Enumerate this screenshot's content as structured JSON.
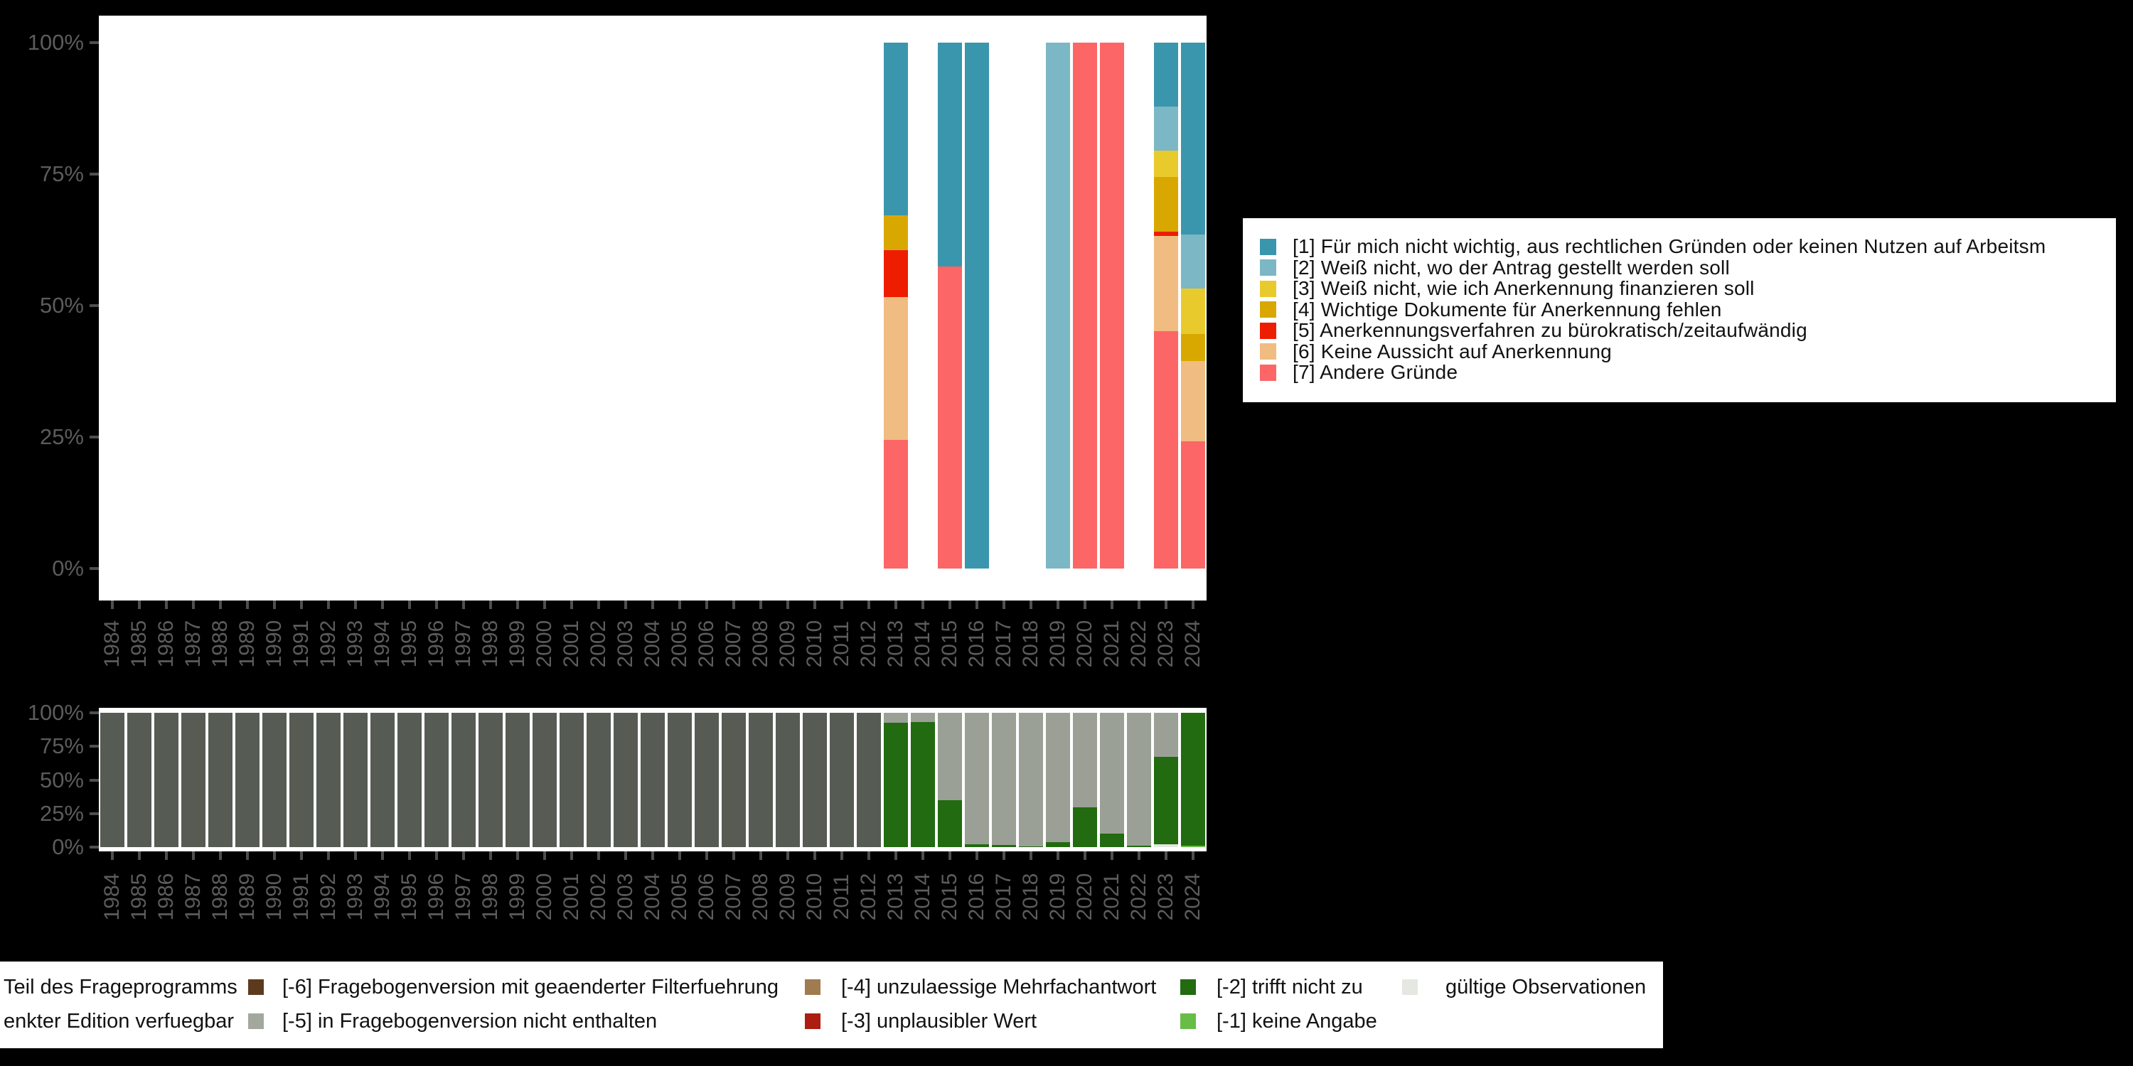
{
  "colors": {
    "background": "#000000",
    "plot_background": "#ffffff",
    "axis_text": "#5c5c5c",
    "tick": "#4f4f4f",
    "teal": "#3a96ad",
    "light_blue": "#7cb7c5",
    "yellow": "#e9ca2d",
    "gold": "#d8a800",
    "red": "#ee1d00",
    "tan": "#f0bc81",
    "salmon": "#fc6666",
    "dark_olive": "#565c54",
    "gray": "#9ba097",
    "dark_green": "#226b10",
    "light_green": "#68bd47",
    "valid_light_gray": "#e4e8e1",
    "dark_brown": "#5e3a1d",
    "light_brown": "#a07b50",
    "dark_red": "#ad1d12",
    "swatch_gray": "#a3a89f"
  },
  "chart_data": [
    {
      "type": "bar",
      "stacked": true,
      "title": "",
      "xlabel": "",
      "ylabel": "",
      "ylim": [
        0,
        100
      ],
      "grid": false,
      "ytick_labels": [
        "0%",
        "25%",
        "50%",
        "75%",
        "100%"
      ],
      "ytick_percents": [
        0,
        25,
        50,
        75,
        100
      ],
      "categories": [
        "1984",
        "1985",
        "1986",
        "1987",
        "1988",
        "1989",
        "1990",
        "1991",
        "1992",
        "1993",
        "1994",
        "1995",
        "1996",
        "1997",
        "1998",
        "1999",
        "2000",
        "2001",
        "2002",
        "2003",
        "2004",
        "2005",
        "2006",
        "2007",
        "2008",
        "2009",
        "2010",
        "2011",
        "2012",
        "2013",
        "2014",
        "2015",
        "2016",
        "2017",
        "2018",
        "2019",
        "2020",
        "2021",
        "2022",
        "2023",
        "2024"
      ],
      "series_bottom_to_top": [
        {
          "name": "[7] Andere Gründe",
          "color": "#fc6666",
          "values": {
            "2013": 24.4,
            "2015": 57.5,
            "2020": 100,
            "2021": 100,
            "2023": 45.2,
            "2024": 24.2
          }
        },
        {
          "name": "[6] Keine Aussicht auf Anerkennung",
          "color": "#f0bc81",
          "values": {
            "2013": 27.2,
            "2023": 18.1,
            "2024": 15.3
          }
        },
        {
          "name": "[5] Anerkennungsverfahren zu bürokratisch/zeitaufwändig",
          "color": "#ee1d00",
          "values": {
            "2013": 9.0,
            "2023": 0.7
          }
        },
        {
          "name": "[4] Wichtige Dokumente für Anerkennung fehlen",
          "color": "#d8a800",
          "values": {
            "2013": 6.5,
            "2023": 10.5,
            "2024": 5.1
          }
        },
        {
          "name": "[3] Weiß nicht, wie ich Anerkennung finanzieren soll",
          "color": "#e9ca2d",
          "values": {
            "2023": 4.9,
            "2024": 8.7
          }
        },
        {
          "name": "[2] Weiß nicht, wo der Antrag gestellt werden soll",
          "color": "#7cb7c5",
          "values": {
            "2019": 100,
            "2023": 8.5,
            "2024": 10.2
          }
        },
        {
          "name": "[1] Für mich nicht wichtig, aus rechtlichen Gründen oder keinen Nutzen auf Arbeitsm",
          "color": "#3a96ad",
          "values": {
            "2013": 32.9,
            "2015": 42.5,
            "2016": 100,
            "2023": 12.1,
            "2024": 36.5
          }
        }
      ]
    },
    {
      "type": "bar",
      "stacked": true,
      "title": "",
      "xlabel": "",
      "ylabel": "",
      "ylim": [
        0,
        100
      ],
      "grid": false,
      "ytick_labels": [
        "0%",
        "25%",
        "50%",
        "75%",
        "100%"
      ],
      "ytick_percents": [
        0,
        25,
        50,
        75,
        100
      ],
      "categories": [
        "1984",
        "1985",
        "1986",
        "1987",
        "1988",
        "1989",
        "1990",
        "1991",
        "1992",
        "1993",
        "1994",
        "1995",
        "1996",
        "1997",
        "1998",
        "1999",
        "2000",
        "2001",
        "2002",
        "2003",
        "2004",
        "2005",
        "2006",
        "2007",
        "2008",
        "2009",
        "2010",
        "2011",
        "2012",
        "2013",
        "2014",
        "2015",
        "2016",
        "2017",
        "2018",
        "2019",
        "2020",
        "2021",
        "2022",
        "2023",
        "2024"
      ],
      "series_bottom_to_top": [
        {
          "name": "gültige Observationen",
          "color": "#e4e8e1",
          "values": {
            "2023": 2.3
          }
        },
        {
          "name": "[-1] keine Angabe",
          "color": "#68bd47",
          "values": {
            "2024": 1.2
          }
        },
        {
          "name": "[-2] trifft nicht zu",
          "color": "#226b10",
          "values": {
            "2013": 92.5,
            "2014": 93,
            "2015": 35,
            "2016": 2.3,
            "2017": 1.8,
            "2018": 0.7,
            "2019": 3.6,
            "2020": 29.5,
            "2021": 10.2,
            "2022": 1.2,
            "2023": 64.7,
            "2024": 98.8
          }
        },
        {
          "name": "[-5] in Fragebogenversion nicht enthalten",
          "color": "#9ba097",
          "values": {
            "2013": 7.5,
            "2014": 7,
            "2015": 65,
            "2016": 97.7,
            "2017": 98.2,
            "2018": 99.3,
            "2019": 96.4,
            "2020": 70.5,
            "2021": 89.8,
            "2022": 98.8,
            "2023": 33
          }
        },
        {
          "name": "Teil des Frageprogramms",
          "color": "#565c54",
          "values": {
            "1984": 100,
            "1985": 100,
            "1986": 100,
            "1987": 100,
            "1988": 100,
            "1989": 100,
            "1990": 100,
            "1991": 100,
            "1992": 100,
            "1993": 100,
            "1994": 100,
            "1995": 100,
            "1996": 100,
            "1997": 100,
            "1998": 100,
            "1999": 100,
            "2000": 100,
            "2001": 100,
            "2002": 100,
            "2003": 100,
            "2004": 100,
            "2005": 100,
            "2006": 100,
            "2007": 100,
            "2008": 100,
            "2009": 100,
            "2010": 100,
            "2011": 100,
            "2012": 100
          }
        }
      ]
    }
  ],
  "legend_top": {
    "items": [
      {
        "label": "[1] Für mich nicht wichtig, aus rechtlichen Gründen oder keinen Nutzen auf Arbeitsm",
        "color": "#3a96ad"
      },
      {
        "label": "[2] Weiß nicht, wo der Antrag gestellt werden soll",
        "color": "#7cb7c5"
      },
      {
        "label": "[3] Weiß nicht, wie ich Anerkennung finanzieren soll",
        "color": "#e9ca2d"
      },
      {
        "label": "[4] Wichtige Dokumente für Anerkennung fehlen",
        "color": "#d8a800"
      },
      {
        "label": "[5] Anerkennungsverfahren zu bürokratisch/zeitaufwändig",
        "color": "#ee1d00"
      },
      {
        "label": "[6] Keine Aussicht auf Anerkennung",
        "color": "#f0bc81"
      },
      {
        "label": "[7] Andere Gründe",
        "color": "#fc6666"
      }
    ]
  },
  "legend_bottom": {
    "rows": [
      [
        {
          "label": "Teil des Frageprogramms",
          "color": null,
          "swatch_x": null,
          "label_x": 5
        },
        {
          "label": "[-6] Fragebogenversion mit geaenderter Filterfuehrung",
          "color": "#5e3a1d",
          "swatch_x": 349,
          "label_x": 397
        },
        {
          "label": "[-4] unzulaessige Mehrfachantwort",
          "color": "#a07b50",
          "swatch_x": 1132,
          "label_x": 1183
        },
        {
          "label": "[-2] trifft nicht zu",
          "color": "#226b10",
          "swatch_x": 1660,
          "label_x": 1711
        },
        {
          "label": "gültige Observationen",
          "color": "#e4e8e1",
          "swatch_x": 1972,
          "label_x": 2033
        }
      ],
      [
        {
          "label": "enkter Edition verfuegbar",
          "color": null,
          "swatch_x": null,
          "label_x": 5
        },
        {
          "label": "[-5] in Fragebogenversion nicht enthalten",
          "color": "#a3a89f",
          "swatch_x": 349,
          "label_x": 397
        },
        {
          "label": "[-3] unplausibler Wert",
          "color": "#ad1d12",
          "swatch_x": 1132,
          "label_x": 1183
        },
        {
          "label": "[-1] keine Angabe",
          "color": "#68bd47",
          "swatch_x": 1660,
          "label_x": 1711
        }
      ]
    ]
  }
}
